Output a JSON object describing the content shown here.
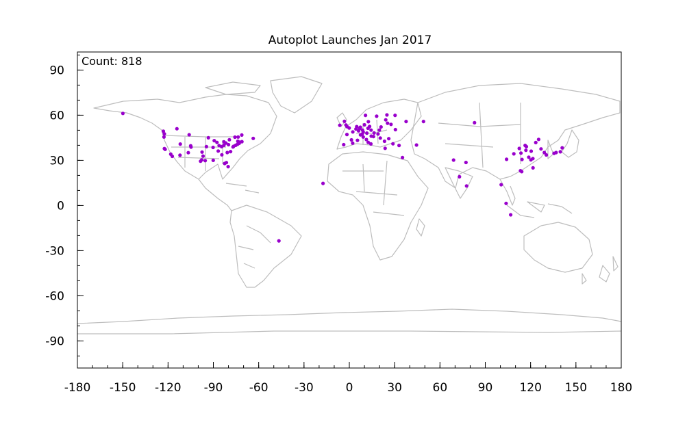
{
  "chart_data": {
    "type": "scatter",
    "title": "Autoplot Launches Jan 2017",
    "annotation": "Count: 818",
    "xlabel": "",
    "ylabel": "",
    "xlim": [
      -180,
      180
    ],
    "ylim": [
      -108,
      102
    ],
    "xticks": [
      -180,
      -150,
      -120,
      -90,
      -60,
      -30,
      0,
      30,
      60,
      90,
      120,
      150,
      180
    ],
    "yticks": [
      -90,
      -60,
      -30,
      0,
      30,
      60,
      90
    ],
    "x_minor_step": 10,
    "y_minor_step": 10,
    "grid": false,
    "point_color": "#9900cc",
    "basemap_color": "#bdbdbd",
    "points": [
      [
        -149.9,
        61.2
      ],
      [
        -122.4,
        47.6
      ],
      [
        -122.7,
        45.5
      ],
      [
        -122.4,
        37.8
      ],
      [
        -121.9,
        37.3
      ],
      [
        -118.2,
        34.1
      ],
      [
        -117.2,
        32.7
      ],
      [
        -114.1,
        51.0
      ],
      [
        -111.9,
        40.8
      ],
      [
        -112.1,
        33.4
      ],
      [
        -106.6,
        35.1
      ],
      [
        -105.0,
        39.7
      ],
      [
        -104.8,
        38.8
      ],
      [
        -98.5,
        29.4
      ],
      [
        -97.7,
        30.3
      ],
      [
        -96.8,
        32.8
      ],
      [
        -95.4,
        29.8
      ],
      [
        -97.5,
        35.5
      ],
      [
        -94.6,
        39.1
      ],
      [
        -93.3,
        45.0
      ],
      [
        -90.2,
        38.6
      ],
      [
        -90.1,
        30.0
      ],
      [
        -89.4,
        43.1
      ],
      [
        -87.6,
        41.9
      ],
      [
        -86.8,
        36.2
      ],
      [
        -86.2,
        39.8
      ],
      [
        -84.4,
        33.7
      ],
      [
        -84.5,
        39.1
      ],
      [
        -83.0,
        40.0
      ],
      [
        -83.0,
        42.3
      ],
      [
        -81.7,
        41.5
      ],
      [
        -80.8,
        35.2
      ],
      [
        -80.2,
        25.8
      ],
      [
        -79.4,
        43.7
      ],
      [
        -80.0,
        40.4
      ],
      [
        -78.6,
        35.8
      ],
      [
        -77.0,
        38.9
      ],
      [
        -76.6,
        39.3
      ],
      [
        -75.7,
        45.4
      ],
      [
        -75.2,
        40.0
      ],
      [
        -74.0,
        40.7
      ],
      [
        -73.6,
        45.5
      ],
      [
        -72.9,
        41.3
      ],
      [
        -71.1,
        42.4
      ],
      [
        -71.2,
        46.8
      ],
      [
        -72.6,
        42.1
      ],
      [
        -73.8,
        42.7
      ],
      [
        -106.0,
        47.0
      ],
      [
        -82.5,
        27.9
      ],
      [
        -81.4,
        28.5
      ],
      [
        -46.6,
        -23.5
      ],
      [
        -17.4,
        14.7
      ],
      [
        -6.3,
        53.3
      ],
      [
        -3.2,
        55.9
      ],
      [
        -2.2,
        53.5
      ],
      [
        -1.5,
        52.4
      ],
      [
        -0.1,
        51.5
      ],
      [
        2.3,
        48.9
      ],
      [
        -1.6,
        47.2
      ],
      [
        1.4,
        43.6
      ],
      [
        -3.7,
        40.4
      ],
      [
        2.2,
        41.4
      ],
      [
        4.9,
        52.4
      ],
      [
        4.4,
        50.8
      ],
      [
        6.1,
        49.6
      ],
      [
        5.4,
        43.3
      ],
      [
        7.3,
        52.0
      ],
      [
        6.8,
        51.2
      ],
      [
        8.7,
        50.1
      ],
      [
        9.2,
        48.8
      ],
      [
        11.6,
        48.1
      ],
      [
        13.4,
        52.5
      ],
      [
        10.0,
        53.6
      ],
      [
        12.4,
        51.3
      ],
      [
        7.4,
        46.9
      ],
      [
        8.5,
        47.4
      ],
      [
        9.2,
        45.5
      ],
      [
        11.3,
        43.8
      ],
      [
        12.5,
        41.9
      ],
      [
        14.3,
        40.9
      ],
      [
        16.4,
        48.2
      ],
      [
        14.4,
        50.1
      ],
      [
        19.0,
        47.5
      ],
      [
        21.0,
        52.2
      ],
      [
        19.9,
        50.1
      ],
      [
        12.6,
        55.7
      ],
      [
        10.7,
        59.9
      ],
      [
        18.1,
        59.3
      ],
      [
        24.9,
        60.2
      ],
      [
        24.1,
        56.9
      ],
      [
        25.3,
        54.7
      ],
      [
        23.7,
        38.0
      ],
      [
        26.1,
        44.4
      ],
      [
        30.5,
        50.4
      ],
      [
        27.6,
        53.9
      ],
      [
        37.6,
        55.8
      ],
      [
        30.3,
        59.9
      ],
      [
        28.9,
        41.0
      ],
      [
        32.9,
        39.9
      ],
      [
        35.2,
        31.8
      ],
      [
        44.5,
        40.2
      ],
      [
        49.1,
        55.8
      ],
      [
        14.5,
        46.1
      ],
      [
        16.0,
        45.8
      ],
      [
        20.5,
        44.8
      ],
      [
        23.3,
        42.7
      ],
      [
        72.9,
        19.1
      ],
      [
        77.2,
        28.6
      ],
      [
        77.6,
        13.0
      ],
      [
        69.0,
        30.2
      ],
      [
        82.9,
        55.0
      ],
      [
        100.5,
        13.8
      ],
      [
        103.8,
        1.4
      ],
      [
        106.8,
        -6.2
      ],
      [
        116.4,
        39.9
      ],
      [
        117.2,
        39.1
      ],
      [
        121.5,
        31.2
      ],
      [
        120.2,
        30.3
      ],
      [
        118.8,
        32.1
      ],
      [
        114.3,
        30.6
      ],
      [
        113.3,
        23.1
      ],
      [
        114.1,
        22.5
      ],
      [
        121.6,
        25.0
      ],
      [
        126.9,
        37.6
      ],
      [
        129.1,
        35.2
      ],
      [
        139.7,
        35.7
      ],
      [
        135.5,
        34.7
      ],
      [
        136.9,
        35.2
      ],
      [
        140.9,
        38.3
      ],
      [
        130.4,
        33.6
      ],
      [
        120.4,
        36.1
      ],
      [
        113.6,
        34.8
      ],
      [
        104.1,
        30.7
      ],
      [
        108.9,
        34.3
      ],
      [
        116.9,
        36.7
      ],
      [
        112.5,
        37.9
      ],
      [
        125.3,
        43.9
      ],
      [
        123.4,
        41.8
      ],
      [
        -123.1,
        49.3
      ],
      [
        -63.6,
        44.6
      ]
    ]
  }
}
